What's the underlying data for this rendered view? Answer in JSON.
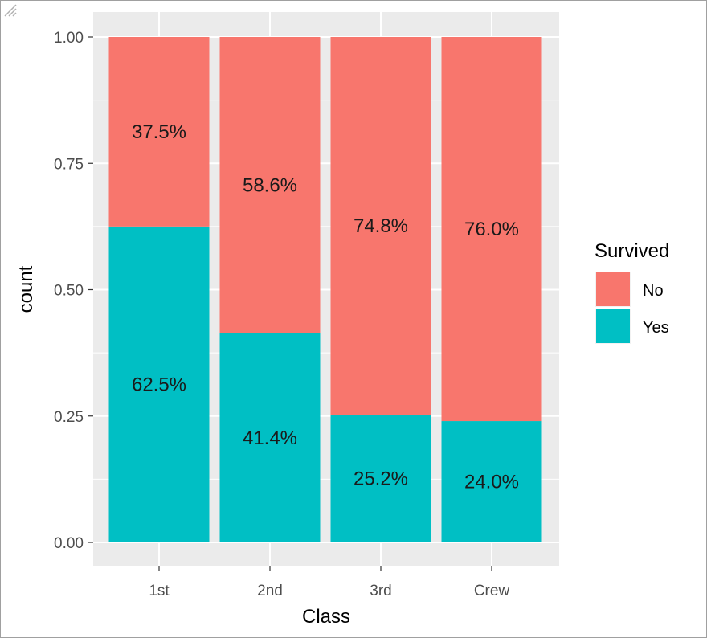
{
  "chart_data": {
    "type": "bar",
    "stacked": true,
    "xlabel": "Class",
    "ylabel": "count",
    "ylim": [
      0,
      1
    ],
    "y_ticks": [
      "0.00",
      "0.25",
      "0.50",
      "0.75",
      "1.00"
    ],
    "categories": [
      "1st",
      "2nd",
      "3rd",
      "Crew"
    ],
    "legend_title": "Survived",
    "legend_position": "right",
    "grid": true,
    "series": [
      {
        "name": "Yes",
        "color": "#00BFC4",
        "values": [
          0.625,
          0.414,
          0.252,
          0.24
        ],
        "labels": [
          "62.5%",
          "41.4%",
          "25.2%",
          "24.0%"
        ]
      },
      {
        "name": "No",
        "color": "#F8766D",
        "values": [
          0.375,
          0.586,
          0.748,
          0.76
        ],
        "labels": [
          "37.5%",
          "58.6%",
          "74.8%",
          "76.0%"
        ]
      }
    ],
    "legend_order": [
      "No",
      "Yes"
    ]
  }
}
